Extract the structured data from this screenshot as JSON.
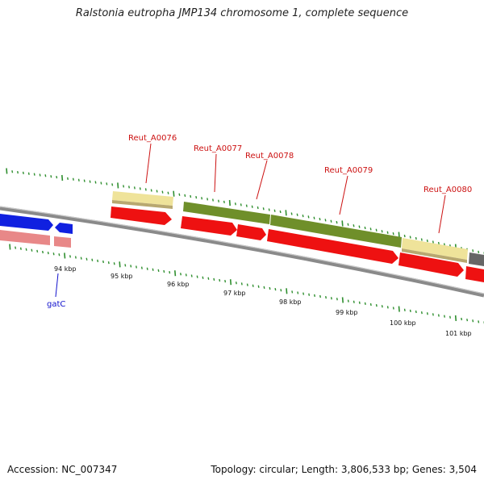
{
  "title": "Ralstonia eutropha JMP134 chromosome 1, complete sequence",
  "footer": {
    "accession": "Accession: NC_007347",
    "info": "Topology: circular; Length: 3,806,533 bp; Genes: 3,504"
  },
  "colors": {
    "backbone": "#8a8a8a",
    "cds_red": "#ee1111",
    "cds_pink": "#e88888",
    "cds_blue": "#1020e0",
    "gene_yellow": "#efe39a",
    "gene_olive": "#6f8f2a",
    "gene_gray": "#666666",
    "tick_green": "#2f8f2f",
    "label_red": "#cc1111",
    "label_blue": "#1010cc"
  },
  "gene_labels": [
    {
      "name": "Reut_A0076",
      "color": "red"
    },
    {
      "name": "Reut_A0077",
      "color": "red"
    },
    {
      "name": "Reut_A0078",
      "color": "red"
    },
    {
      "name": "Reut_A0079",
      "color": "red"
    },
    {
      "name": "Reut_A0080",
      "color": "red"
    },
    {
      "name": "gatC",
      "color": "blue"
    }
  ],
  "kbp_labels": [
    "94 kbp",
    "95 kbp",
    "96 kbp",
    "97 kbp",
    "98 kbp",
    "99 kbp",
    "100 kbp",
    "101 kbp"
  ]
}
